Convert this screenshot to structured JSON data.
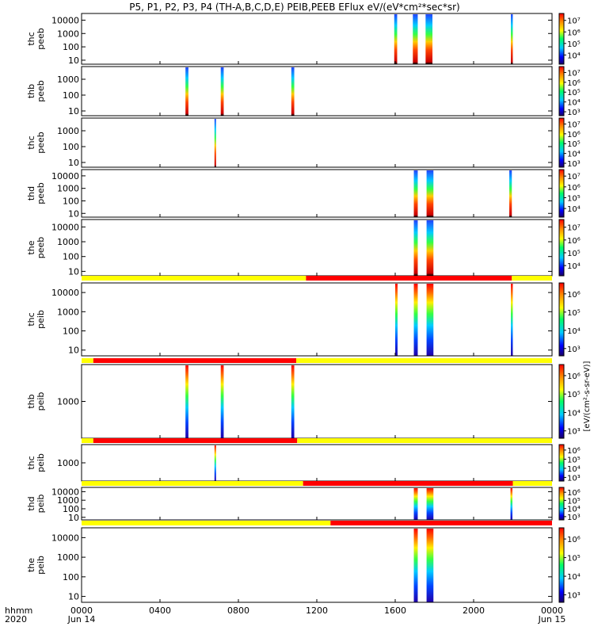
{
  "title": "P5, P1, P2, P3, P4 (TH-A,B,C,D,E) PEIB,PEEB EFlux eV/(eV*cm²*sec*sr)",
  "colorbar_units_label": "[eV/(cm²-s-sr-eV)]",
  "colors": {
    "flag_yellow": "#ffff00",
    "flag_red": "#ff0000",
    "axis": "#000000",
    "background": "#ffffff"
  },
  "chart_data": {
    "type": "heatmap",
    "x_axis": {
      "label_line1": "hhmm",
      "label_line2": "2020",
      "ticks": [
        "0000",
        "0400",
        "0800",
        "1200",
        "1600",
        "2000",
        "0000"
      ],
      "tick_hours": [
        0,
        4,
        8,
        12,
        16,
        20,
        24
      ],
      "date_labels": [
        {
          "hour": 0,
          "text": "Jun 14"
        },
        {
          "hour": 24,
          "text": "Jun 15"
        }
      ],
      "range_hours": [
        0,
        24
      ]
    },
    "panels": [
      {
        "ylabel": [
          "thc",
          "peeb"
        ],
        "yticks": [
          "10000",
          "1000",
          "100",
          "10"
        ],
        "ylog": [
          0.7,
          4.5
        ],
        "cb_ticks": [
          "10⁷",
          "10⁶",
          "10⁵",
          "10⁴"
        ],
        "cb_log": [
          3.2,
          7.6
        ],
        "bursts": [
          [
            15.95,
            16.1
          ],
          [
            16.9,
            17.15
          ],
          [
            17.55,
            17.9
          ],
          [
            21.9,
            22.0
          ]
        ],
        "bars": []
      },
      {
        "ylabel": [
          "thb",
          "peeb"
        ],
        "yticks": [
          "1000",
          "100",
          "10"
        ],
        "ylog": [
          0.7,
          3.8
        ],
        "cb_ticks": [
          "10⁷",
          "10⁶",
          "10⁵",
          "10⁴",
          "10³"
        ],
        "cb_log": [
          2.6,
          7.6
        ],
        "bursts": [
          [
            5.3,
            5.45
          ],
          [
            7.1,
            7.25
          ],
          [
            10.7,
            10.85
          ]
        ],
        "bars": []
      },
      {
        "ylabel": [
          "thc",
          "peeb"
        ],
        "yticks": [
          "1000",
          "100",
          "10"
        ],
        "ylog": [
          0.7,
          3.8
        ],
        "cb_ticks": [
          "10⁷",
          "10⁶",
          "10⁵",
          "10⁴",
          "10³"
        ],
        "cb_log": [
          2.6,
          7.6
        ],
        "bursts": [
          [
            6.78,
            6.85
          ]
        ],
        "bars": []
      },
      {
        "ylabel": [
          "thd",
          "peeb"
        ],
        "yticks": [
          "10000",
          "1000",
          "100",
          "10"
        ],
        "ylog": [
          0.7,
          4.5
        ],
        "cb_ticks": [
          "10⁷",
          "10⁶",
          "10⁵",
          "10⁴"
        ],
        "cb_log": [
          3.2,
          7.6
        ],
        "bursts": [
          [
            16.95,
            17.15
          ],
          [
            17.6,
            17.95
          ],
          [
            21.82,
            21.95
          ]
        ],
        "bars": []
      },
      {
        "ylabel": [
          "the",
          "peeb"
        ],
        "yticks": [
          "10000",
          "1000",
          "100",
          "10"
        ],
        "ylog": [
          0.7,
          4.5
        ],
        "cb_ticks": [
          "10⁷",
          "10⁶",
          "10⁵",
          "10⁴"
        ],
        "cb_log": [
          3.2,
          7.6
        ],
        "bursts": [
          [
            16.95,
            17.15
          ],
          [
            17.6,
            17.95
          ]
        ],
        "bars": []
      },
      {
        "ylabel": [
          "thc",
          "peib"
        ],
        "yticks": [
          "10000",
          "1000",
          "100",
          "10"
        ],
        "ylog": [
          0.7,
          4.5
        ],
        "cb_ticks": [
          "10⁶",
          "10⁵",
          "10⁴",
          "10³"
        ],
        "cb_log": [
          2.6,
          6.6
        ],
        "bursts": [
          [
            16.0,
            16.12
          ],
          [
            16.95,
            17.15
          ],
          [
            17.6,
            17.95
          ],
          [
            21.9,
            22.0
          ]
        ],
        "bars": [
          {
            "from": 0,
            "to": 11.45,
            "color": "yellow"
          },
          {
            "from": 11.45,
            "to": 21.95,
            "color": "red"
          },
          {
            "from": 21.95,
            "to": 24,
            "color": "yellow"
          }
        ]
      },
      {
        "ylabel": [
          "thb",
          "peib"
        ],
        "yticks": [
          "1000"
        ],
        "ylog": [
          1.8,
          4.2
        ],
        "cb_ticks": [
          "10⁶",
          "10⁵",
          "10⁴",
          "10³"
        ],
        "cb_log": [
          2.6,
          6.6
        ],
        "bursts": [
          [
            5.3,
            5.45
          ],
          [
            7.1,
            7.25
          ],
          [
            10.7,
            10.85
          ]
        ],
        "bars": [
          {
            "from": 0,
            "to": 0.6,
            "color": "yellow"
          },
          {
            "from": 0.6,
            "to": 10.95,
            "color": "red"
          },
          {
            "from": 10.95,
            "to": 24,
            "color": "yellow"
          }
        ]
      },
      {
        "ylabel": [
          "thc",
          "peib"
        ],
        "yticks": [
          "1000"
        ],
        "ylog": [
          1.8,
          4.2
        ],
        "cb_ticks": [
          "10⁶",
          "10⁵",
          "10⁴",
          "10³"
        ],
        "cb_log": [
          2.6,
          6.6
        ],
        "bursts": [
          [
            6.78,
            6.85
          ]
        ],
        "bars": [
          {
            "from": 0,
            "to": 0.6,
            "color": "yellow"
          },
          {
            "from": 0.6,
            "to": 11.0,
            "color": "red"
          },
          {
            "from": 11.0,
            "to": 24,
            "color": "yellow"
          }
        ]
      },
      {
        "ylabel": [
          "thd",
          "peib"
        ],
        "yticks": [
          "10000",
          "1000",
          "100",
          "10"
        ],
        "ylog": [
          0.7,
          4.5
        ],
        "cb_ticks": [
          "10⁶",
          "10⁵",
          "10⁴",
          "10³"
        ],
        "cb_log": [
          2.6,
          6.6
        ],
        "bursts": [
          [
            16.95,
            17.15
          ],
          [
            17.6,
            17.95
          ],
          [
            21.88,
            21.98
          ]
        ],
        "bars": [
          {
            "from": 0,
            "to": 11.3,
            "color": "yellow"
          },
          {
            "from": 11.3,
            "to": 22.0,
            "color": "red"
          },
          {
            "from": 22.0,
            "to": 24,
            "color": "yellow"
          }
        ]
      },
      {
        "ylabel": [
          "the",
          "peib"
        ],
        "yticks": [
          "10000",
          "1000",
          "100",
          "10"
        ],
        "ylog": [
          0.7,
          4.5
        ],
        "cb_ticks": [
          "10⁶",
          "10⁵",
          "10⁴",
          "10³"
        ],
        "cb_log": [
          2.6,
          6.6
        ],
        "bursts": [
          [
            16.95,
            17.15
          ],
          [
            17.6,
            17.95
          ]
        ],
        "bars": [
          {
            "from": 0,
            "to": 12.7,
            "color": "yellow"
          },
          {
            "from": 12.7,
            "to": 24,
            "color": "red"
          }
        ]
      }
    ]
  }
}
